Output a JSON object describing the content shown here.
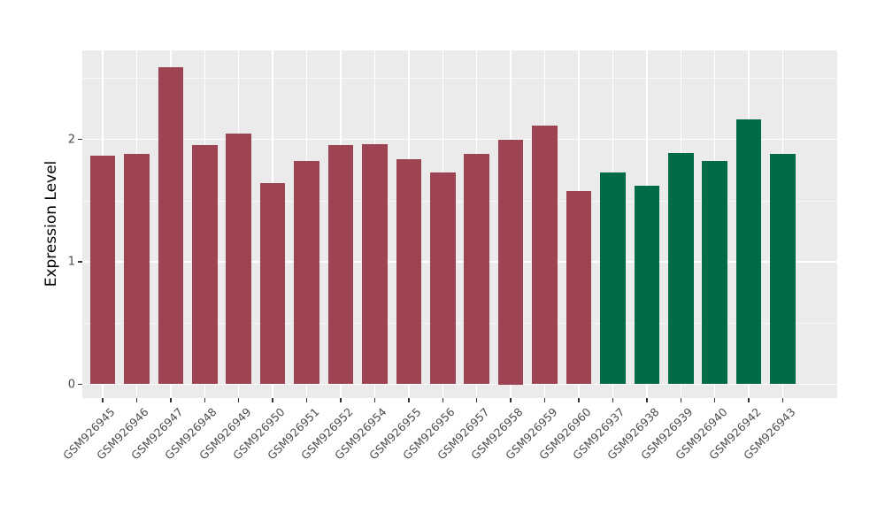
{
  "chart_data": {
    "type": "bar",
    "title": "",
    "xlabel": "",
    "ylabel": "Expression Level",
    "ylim": [
      0,
      2.72
    ],
    "yticks": [
      "0",
      "1",
      "2"
    ],
    "ytick_values": [
      0,
      1,
      2
    ],
    "yminor_values": [
      0.5,
      1.5,
      2.5
    ],
    "grid": "on",
    "legend_position": "none",
    "panel_background": "#EBEBEB",
    "gridline_color": "#FFFFFF",
    "group_colors": {
      "group1": "#9D4351",
      "group2": "#006A49"
    },
    "categories": [
      "GSM926945",
      "GSM926946",
      "GSM926947",
      "GSM926948",
      "GSM926949",
      "GSM926950",
      "GSM926951",
      "GSM926952",
      "GSM926954",
      "GSM926955",
      "GSM926956",
      "GSM926957",
      "GSM926958",
      "GSM926959",
      "GSM926960",
      "GSM926937",
      "GSM926938",
      "GSM926939",
      "GSM926940",
      "GSM926942",
      "GSM926943"
    ],
    "values": [
      1.87,
      1.88,
      2.59,
      1.95,
      2.05,
      1.64,
      1.82,
      1.95,
      1.96,
      1.84,
      1.73,
      1.88,
      2.0,
      2.11,
      1.58,
      1.73,
      1.62,
      1.89,
      1.82,
      2.16,
      1.88
    ],
    "groups": [
      "group1",
      "group1",
      "group1",
      "group1",
      "group1",
      "group1",
      "group1",
      "group1",
      "group1",
      "group1",
      "group1",
      "group1",
      "group1",
      "group1",
      "group1",
      "group2",
      "group2",
      "group2",
      "group2",
      "group2",
      "group2"
    ]
  }
}
